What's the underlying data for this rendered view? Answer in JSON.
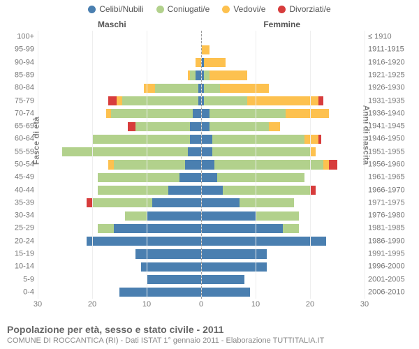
{
  "chart": {
    "type": "population-pyramid",
    "legend": [
      {
        "label": "Celibi/Nubili",
        "color": "#4a7fb0"
      },
      {
        "label": "Coniugati/e",
        "color": "#b2d18c"
      },
      {
        "label": "Vedovi/e",
        "color": "#fdc14f"
      },
      {
        "label": "Divorziati/e",
        "color": "#d73c3c"
      }
    ],
    "side_labels": {
      "left": "Maschi",
      "right": "Femmine"
    },
    "y_left_title": "Fasce di età",
    "y_right_title": "Anni di nascita",
    "x_max": 30,
    "x_ticks": [
      30,
      20,
      10,
      0,
      10,
      20,
      30
    ],
    "grid_color": "#eeeeee",
    "centerline_color": "#999999",
    "label_color": "#777777",
    "bar_height_ratio": 0.72,
    "caption_title": "Popolazione per età, sesso e stato civile - 2011",
    "caption_sub": "COMUNE DI ROCCANTICA (RI) - Dati ISTAT 1° gennaio 2011 - Elaborazione TUTTITALIA.IT",
    "rows": [
      {
        "age": "100+",
        "birth": "≤ 1910",
        "m": [
          0,
          0,
          0,
          0
        ],
        "f": [
          0,
          0,
          0,
          0
        ]
      },
      {
        "age": "95-99",
        "birth": "1911-1915",
        "m": [
          0,
          0,
          0,
          0
        ],
        "f": [
          0,
          0,
          1.5,
          0
        ]
      },
      {
        "age": "90-94",
        "birth": "1916-1920",
        "m": [
          0,
          0,
          1,
          0
        ],
        "f": [
          0.5,
          0,
          4,
          0
        ]
      },
      {
        "age": "85-89",
        "birth": "1921-1925",
        "m": [
          1,
          1,
          0.5,
          0
        ],
        "f": [
          0.5,
          1,
          7,
          0
        ]
      },
      {
        "age": "80-84",
        "birth": "1926-1930",
        "m": [
          0.5,
          8,
          2,
          0
        ],
        "f": [
          0.5,
          3,
          9,
          0
        ]
      },
      {
        "age": "75-79",
        "birth": "1931-1935",
        "m": [
          0.5,
          14,
          1,
          1.5
        ],
        "f": [
          0.5,
          8,
          13,
          1
        ]
      },
      {
        "age": "70-74",
        "birth": "1936-1940",
        "m": [
          1.5,
          15,
          1,
          0
        ],
        "f": [
          1.5,
          14,
          8,
          0
        ]
      },
      {
        "age": "65-69",
        "birth": "1941-1945",
        "m": [
          2,
          10,
          0,
          1.5
        ],
        "f": [
          1.5,
          11,
          2,
          0
        ]
      },
      {
        "age": "60-64",
        "birth": "1946-1950",
        "m": [
          2,
          18,
          0,
          0
        ],
        "f": [
          2,
          17,
          2.5,
          0.5
        ]
      },
      {
        "age": "55-59",
        "birth": "1951-1955",
        "m": [
          2.5,
          23,
          0,
          0
        ],
        "f": [
          2,
          18,
          1,
          0
        ]
      },
      {
        "age": "50-54",
        "birth": "1956-1960",
        "m": [
          3,
          13,
          1,
          0
        ],
        "f": [
          2.5,
          20,
          1,
          1.5
        ]
      },
      {
        "age": "45-49",
        "birth": "1961-1965",
        "m": [
          4,
          15,
          0,
          0
        ],
        "f": [
          3,
          16,
          0,
          0
        ]
      },
      {
        "age": "40-44",
        "birth": "1966-1970",
        "m": [
          6,
          13,
          0,
          0
        ],
        "f": [
          4,
          16,
          0,
          1
        ]
      },
      {
        "age": "35-39",
        "birth": "1971-1975",
        "m": [
          9,
          11,
          0,
          1
        ],
        "f": [
          7,
          10,
          0,
          0
        ]
      },
      {
        "age": "30-34",
        "birth": "1976-1980",
        "m": [
          10,
          4,
          0,
          0
        ],
        "f": [
          10,
          8,
          0,
          0
        ]
      },
      {
        "age": "25-29",
        "birth": "1981-1985",
        "m": [
          16,
          3,
          0,
          0
        ],
        "f": [
          15,
          3,
          0,
          0
        ]
      },
      {
        "age": "20-24",
        "birth": "1986-1990",
        "m": [
          21,
          0,
          0,
          0
        ],
        "f": [
          23,
          0,
          0,
          0
        ]
      },
      {
        "age": "15-19",
        "birth": "1991-1995",
        "m": [
          12,
          0,
          0,
          0
        ],
        "f": [
          12,
          0,
          0,
          0
        ]
      },
      {
        "age": "10-14",
        "birth": "1996-2000",
        "m": [
          11,
          0,
          0,
          0
        ],
        "f": [
          12,
          0,
          0,
          0
        ]
      },
      {
        "age": "5-9",
        "birth": "2001-2005",
        "m": [
          10,
          0,
          0,
          0
        ],
        "f": [
          8,
          0,
          0,
          0
        ]
      },
      {
        "age": "0-4",
        "birth": "2006-2010",
        "m": [
          15,
          0,
          0,
          0
        ],
        "f": [
          9,
          0,
          0,
          0
        ]
      }
    ]
  }
}
